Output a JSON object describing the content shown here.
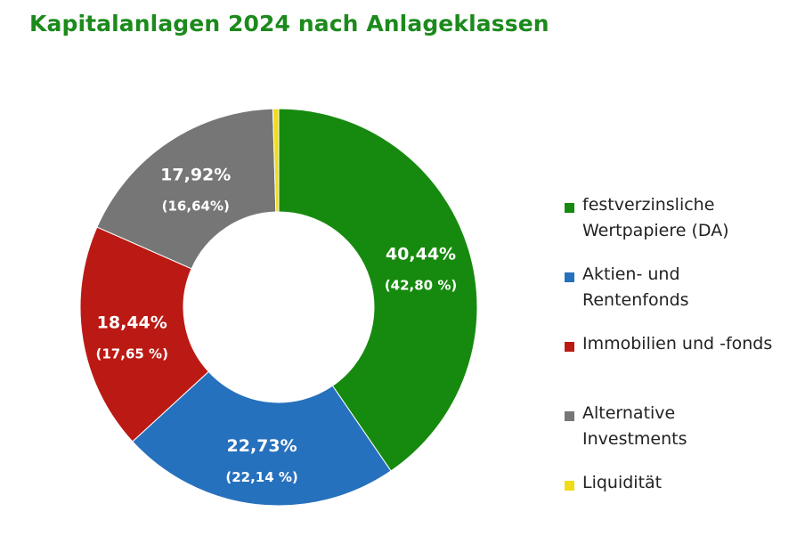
{
  "title": "Kapitalanlagen 2024 nach Anlageklassen",
  "chart_data": {
    "type": "pie",
    "variant": "donut",
    "categories": [
      "festverzinsliche Wertpapiere (DA)",
      "Aktien- und Rentenfonds",
      "Immobilien und -fonds",
      "Alternative Investments",
      "Liquidität"
    ],
    "values": [
      40.44,
      22.73,
      18.44,
      17.92,
      0.47
    ],
    "labels": [
      "40,44%",
      "22,73%",
      "18,44%",
      "17,92%",
      ""
    ],
    "sublabels": [
      "(42,80 %)",
      "(22,14 %)",
      "(17,65 %)",
      "(16,64%)",
      ""
    ],
    "colors": [
      "#168a0e",
      "#2671bd",
      "#bb1a14",
      "#767676",
      "#f0dc18"
    ],
    "legend_position": "right"
  },
  "legend": [
    {
      "label": "festverzinsliche\nWertpapiere (DA)",
      "color": "#168a0e"
    },
    {
      "label": "Aktien- und\nRentenfonds",
      "color": "#2671bd"
    },
    {
      "label": "Immobilien und -fonds",
      "color": "#bb1a14"
    },
    {
      "label": "Alternative\nInvestments",
      "color": "#767676"
    },
    {
      "label": "Liquidität",
      "color": "#f0dc18"
    }
  ]
}
